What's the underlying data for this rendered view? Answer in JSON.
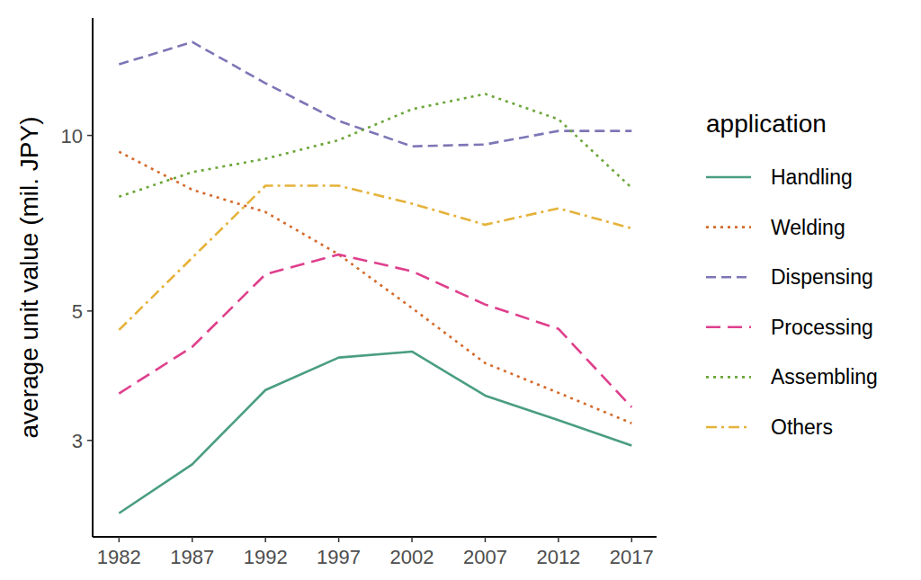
{
  "chart_data": {
    "type": "line",
    "x": [
      1982,
      1987,
      1992,
      1997,
      2002,
      2007,
      2012,
      2017
    ],
    "y_label": "average unit value (mil. JPY)",
    "legend_title": "application",
    "legend": "right",
    "grid": false,
    "log": "y",
    "xlim": [
      1980.2,
      2018.7
    ],
    "xticks": [
      1982,
      1987,
      1992,
      1997,
      2002,
      2007,
      2012,
      2017
    ],
    "ylim": [
      2.05,
      15.9
    ],
    "yticks": [
      3,
      5,
      10
    ],
    "series": [
      {
        "name": "Handling",
        "color": "#4a9e80",
        "line_style": "solid",
        "values": [
          2.25,
          2.73,
          3.66,
          4.16,
          4.26,
          3.58,
          3.25,
          2.94
        ]
      },
      {
        "name": "Welding",
        "color": "#d4692a",
        "line_style": "dotted",
        "values": [
          9.38,
          8.07,
          7.39,
          6.25,
          5.06,
          4.07,
          3.62,
          3.21
        ]
      },
      {
        "name": "Dispensing",
        "color": "#7d76b6",
        "line_style": "dashed",
        "values": [
          13.24,
          14.46,
          12.29,
          10.59,
          9.58,
          9.65,
          10.18,
          10.18
        ]
      },
      {
        "name": "Processing",
        "color": "#df3f8c",
        "line_style": "longdash",
        "values": [
          3.61,
          4.34,
          5.78,
          6.25,
          5.85,
          5.13,
          4.66,
          3.42
        ]
      },
      {
        "name": "Assembling",
        "color": "#6ca63a",
        "line_style": "dotted",
        "values": [
          7.85,
          8.65,
          9.12,
          9.82,
          11.09,
          11.78,
          10.66,
          8.13
        ]
      },
      {
        "name": "Others",
        "color": "#e5b23a",
        "line_style": "dotdash",
        "values": [
          4.64,
          6.17,
          8.2,
          8.2,
          7.64,
          7.03,
          7.5,
          6.93
        ]
      }
    ]
  }
}
